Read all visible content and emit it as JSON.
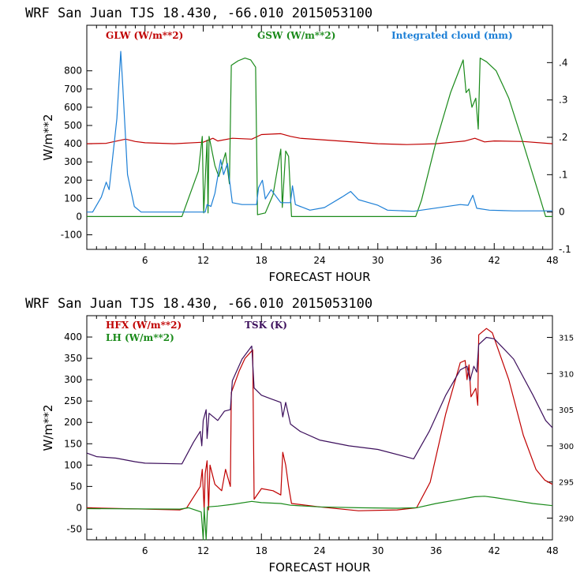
{
  "chart_data": [
    {
      "type": "line",
      "title": "WRF   San Juan TJS  18.430, -66.010  2015053100",
      "xlabel": "FORECAST HOUR",
      "ylabel": "W/m**2",
      "xlim": [
        0,
        48
      ],
      "ylim": [
        -180,
        1050
      ],
      "xticks": [
        "6",
        "12",
        "18",
        "24",
        "30",
        "36",
        "42",
        "48"
      ],
      "yticks": [
        "-100",
        "0",
        "100",
        "200",
        "300",
        "400",
        "500",
        "600",
        "700",
        "800"
      ],
      "y2lim": [
        -0.1,
        0.5
      ],
      "y2ticks": [
        "-.1",
        "0",
        ".1",
        ".2",
        ".3",
        ".4"
      ],
      "colors": {
        "glw": "#c00000",
        "gsw": "#1a8a1a",
        "cloud": "#1c7fd6",
        "axis": "#000000"
      },
      "series": [
        {
          "name": "GLW (W/m**2)",
          "axis": "left",
          "points": [
            [
              0,
              400
            ],
            [
              2,
              402
            ],
            [
              4,
              425
            ],
            [
              5,
              412
            ],
            [
              6,
              405
            ],
            [
              9,
              400
            ],
            [
              12,
              408
            ],
            [
              13,
              430
            ],
            [
              13.5,
              415
            ],
            [
              15,
              430
            ],
            [
              17,
              425
            ],
            [
              18,
              450
            ],
            [
              20,
              455
            ],
            [
              21,
              440
            ],
            [
              22,
              430
            ],
            [
              26,
              415
            ],
            [
              30,
              400
            ],
            [
              33,
              395
            ],
            [
              36,
              400
            ],
            [
              38,
              410
            ],
            [
              39,
              415
            ],
            [
              40,
              430
            ],
            [
              41,
              410
            ],
            [
              42,
              415
            ],
            [
              45,
              412
            ],
            [
              48,
              400
            ]
          ]
        },
        {
          "name": "GSW (W/m**2)",
          "axis": "left",
          "points": [
            [
              0,
              0
            ],
            [
              9.8,
              0
            ],
            [
              11.5,
              250
            ],
            [
              11.9,
              440
            ],
            [
              12.05,
              20
            ],
            [
              12.4,
              420
            ],
            [
              12.5,
              20
            ],
            [
              12.6,
              440
            ],
            [
              13.2,
              280
            ],
            [
              13.6,
              220
            ],
            [
              14.3,
              350
            ],
            [
              14.7,
              180
            ],
            [
              14.9,
              830
            ],
            [
              15.6,
              855
            ],
            [
              16.3,
              870
            ],
            [
              16.9,
              860
            ],
            [
              17.4,
              820
            ],
            [
              17.6,
              10
            ],
            [
              18.4,
              20
            ],
            [
              19.2,
              120
            ],
            [
              20.0,
              370
            ],
            [
              20.15,
              50
            ],
            [
              20.5,
              360
            ],
            [
              20.8,
              330
            ],
            [
              21.1,
              0
            ],
            [
              21.5,
              0
            ],
            [
              33.9,
              0
            ],
            [
              34.5,
              90
            ],
            [
              36,
              410
            ],
            [
              37.5,
              680
            ],
            [
              38.8,
              860
            ],
            [
              39.1,
              680
            ],
            [
              39.4,
              700
            ],
            [
              39.7,
              600
            ],
            [
              40.1,
              650
            ],
            [
              40.35,
              480
            ],
            [
              40.55,
              870
            ],
            [
              41.2,
              850
            ],
            [
              42.2,
              800
            ],
            [
              43.5,
              650
            ],
            [
              45,
              400
            ],
            [
              46.5,
              140
            ],
            [
              47.3,
              0
            ],
            [
              48,
              0
            ]
          ]
        },
        {
          "name": "Integrated cloud (mm)",
          "axis": "right",
          "points": [
            [
              0,
              0
            ],
            [
              0.6,
              0
            ],
            [
              1.5,
              0.04
            ],
            [
              2,
              0.08
            ],
            [
              2.3,
              0.06
            ],
            [
              3.1,
              0.25
            ],
            [
              3.5,
              0.43
            ],
            [
              3.7,
              0.34
            ],
            [
              4.2,
              0.1
            ],
            [
              4.9,
              0.015
            ],
            [
              5.6,
              0
            ],
            [
              12.2,
              0
            ],
            [
              12.4,
              0.02
            ],
            [
              12.8,
              0.015
            ],
            [
              13.2,
              0.05
            ],
            [
              13.8,
              0.14
            ],
            [
              14.1,
              0.1
            ],
            [
              14.5,
              0.13
            ],
            [
              15,
              0.025
            ],
            [
              16,
              0.02
            ],
            [
              17.5,
              0.02
            ],
            [
              17.7,
              0.065
            ],
            [
              18.1,
              0.085
            ],
            [
              18.4,
              0.035
            ],
            [
              19,
              0.06
            ],
            [
              20,
              0.025
            ],
            [
              21,
              0.025
            ],
            [
              21.2,
              0.07
            ],
            [
              21.5,
              0.02
            ],
            [
              23,
              0.005
            ],
            [
              24.5,
              0.012
            ],
            [
              26.3,
              0.04
            ],
            [
              27.2,
              0.055
            ],
            [
              28,
              0.033
            ],
            [
              30,
              0.018
            ],
            [
              31,
              0.005
            ],
            [
              33.7,
              0.002
            ],
            [
              38.5,
              0.02
            ],
            [
              39.3,
              0.018
            ],
            [
              39.8,
              0.045
            ],
            [
              40.2,
              0.01
            ],
            [
              41.5,
              0.005
            ],
            [
              44,
              0.003
            ],
            [
              48,
              0.003
            ]
          ]
        }
      ]
    },
    {
      "type": "line",
      "title": "WRF   San Juan TJS  18.430, -66.010  2015053100",
      "xlabel": "FORECAST HOUR",
      "ylabel": "W/m**2",
      "xlim": [
        0,
        48
      ],
      "ylim": [
        -75,
        450
      ],
      "xticks": [
        "6",
        "12",
        "18",
        "24",
        "30",
        "36",
        "42",
        "48"
      ],
      "yticks": [
        "-50",
        "0",
        "50",
        "100",
        "150",
        "200",
        "250",
        "300",
        "350",
        "400"
      ],
      "y2lim": [
        287,
        318
      ],
      "y2ticks": [
        "290",
        "295",
        "300",
        "305",
        "310",
        "315"
      ],
      "colors": {
        "hfx": "#c00000",
        "lh": "#1a8a1a",
        "tsk": "#3c0f5c"
      },
      "series": [
        {
          "name": "HFX (W/m**2)",
          "axis": "left",
          "points": [
            [
              0,
              0
            ],
            [
              9.6,
              -5
            ],
            [
              10.3,
              0
            ],
            [
              11.7,
              50
            ],
            [
              11.9,
              90
            ],
            [
              12.1,
              -5
            ],
            [
              12.2,
              80
            ],
            [
              12.4,
              110
            ],
            [
              12.55,
              -5
            ],
            [
              12.7,
              100
            ],
            [
              13.2,
              55
            ],
            [
              13.9,
              40
            ],
            [
              14.3,
              90
            ],
            [
              14.8,
              50
            ],
            [
              14.9,
              270
            ],
            [
              15.7,
              320
            ],
            [
              16.3,
              350
            ],
            [
              17.1,
              370
            ],
            [
              17.25,
              20
            ],
            [
              18,
              45
            ],
            [
              19.2,
              40
            ],
            [
              20,
              30
            ],
            [
              20.2,
              130
            ],
            [
              20.5,
              100
            ],
            [
              20.8,
              50
            ],
            [
              21.1,
              10
            ],
            [
              24,
              2
            ],
            [
              28,
              -7
            ],
            [
              32,
              -5
            ],
            [
              34,
              0
            ],
            [
              35.4,
              60
            ],
            [
              37,
              220
            ],
            [
              38.5,
              340
            ],
            [
              39,
              345
            ],
            [
              39.2,
              300
            ],
            [
              39.4,
              335
            ],
            [
              39.6,
              260
            ],
            [
              40.1,
              280
            ],
            [
              40.3,
              240
            ],
            [
              40.4,
              405
            ],
            [
              41.2,
              420
            ],
            [
              41.8,
              410
            ],
            [
              43.5,
              300
            ],
            [
              45,
              170
            ],
            [
              46.3,
              90
            ],
            [
              47.2,
              65
            ],
            [
              48,
              55
            ]
          ]
        },
        {
          "name": "LH (W/m**2)",
          "axis": "left",
          "points": [
            [
              0,
              -2
            ],
            [
              9.6,
              -3
            ],
            [
              10.5,
              0
            ],
            [
              11.8,
              -10
            ],
            [
              12,
              -75
            ],
            [
              12.1,
              0
            ],
            [
              12.3,
              -75
            ],
            [
              12.45,
              2
            ],
            [
              13.5,
              4
            ],
            [
              15,
              8
            ],
            [
              17,
              15
            ],
            [
              18,
              12
            ],
            [
              20,
              10
            ],
            [
              21,
              6
            ],
            [
              24,
              2
            ],
            [
              28,
              0
            ],
            [
              32,
              -1
            ],
            [
              34,
              0
            ],
            [
              36,
              10
            ],
            [
              38,
              18
            ],
            [
              39,
              22
            ],
            [
              40,
              26
            ],
            [
              41,
              27
            ],
            [
              42,
              24
            ],
            [
              44,
              17
            ],
            [
              46,
              10
            ],
            [
              48,
              5
            ]
          ]
        },
        {
          "name": "TSK (K)",
          "axis": "right",
          "points": [
            [
              0,
              299
            ],
            [
              1,
              298.5
            ],
            [
              3,
              298.3
            ],
            [
              5,
              297.8
            ],
            [
              6,
              297.6
            ],
            [
              9.8,
              297.5
            ],
            [
              11,
              300.5
            ],
            [
              11.7,
              302
            ],
            [
              11.85,
              300
            ],
            [
              12,
              303.5
            ],
            [
              12.3,
              305
            ],
            [
              12.4,
              301
            ],
            [
              12.6,
              304.5
            ],
            [
              13.5,
              303.5
            ],
            [
              14.2,
              304.8
            ],
            [
              14.8,
              305
            ],
            [
              15,
              309
            ],
            [
              16,
              312
            ],
            [
              17,
              313.8
            ],
            [
              17.25,
              308
            ],
            [
              18,
              307
            ],
            [
              19,
              306.5
            ],
            [
              20,
              306
            ],
            [
              20.2,
              304
            ],
            [
              20.5,
              306
            ],
            [
              21,
              303
            ],
            [
              22,
              302
            ],
            [
              24,
              300.8
            ],
            [
              27,
              300
            ],
            [
              30,
              299.5
            ],
            [
              33.7,
              298.2
            ],
            [
              35.3,
              302
            ],
            [
              37,
              307
            ],
            [
              38.5,
              310.5
            ],
            [
              39.2,
              311
            ],
            [
              39.5,
              309
            ],
            [
              39.9,
              311
            ],
            [
              40.2,
              310.2
            ],
            [
              40.4,
              314
            ],
            [
              41.2,
              315
            ],
            [
              42,
              314.8
            ],
            [
              44,
              312
            ],
            [
              46,
              307
            ],
            [
              47.3,
              303.5
            ],
            [
              48,
              302.5
            ]
          ]
        }
      ]
    }
  ]
}
